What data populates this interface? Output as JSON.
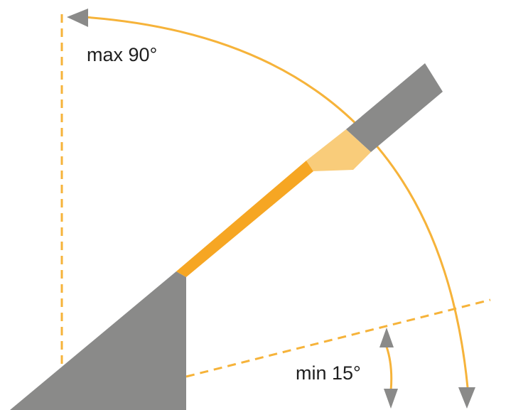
{
  "labels": {
    "max_angle": "max 90°",
    "min_angle": "min 15°"
  },
  "angles": {
    "max_degrees": 90,
    "min_degrees": 15
  },
  "colors": {
    "accent": "#F6B33A",
    "accent_light": "#F9CC7A",
    "accent_strong": "#F2A922",
    "gray": "#8A8A89",
    "text": "#1F1F1F"
  }
}
